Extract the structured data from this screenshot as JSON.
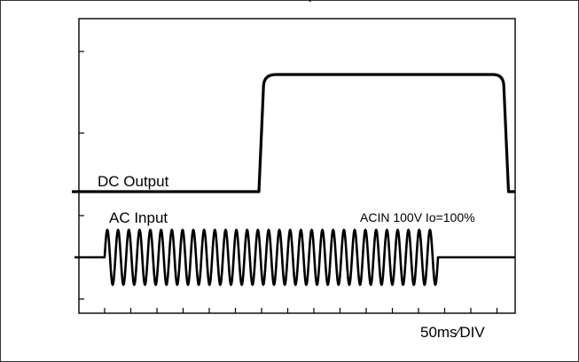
{
  "title_partial": "(",
  "labels": {
    "dc_output": "DC Output",
    "ac_input": "AC Input",
    "condition": "ACIN 100V  Io=100%",
    "time_div": "50ms∕DIV"
  },
  "colors": {
    "trace": "#000000",
    "axis": "#000000",
    "background": "#ffffff"
  },
  "chart_data": {
    "type": "line",
    "title": "",
    "xlabel": "",
    "ylabel": "",
    "x_divisions": 16,
    "time_per_division": "50ms",
    "grid": false,
    "series": [
      {
        "name": "DC Output",
        "points": [
          [
            0,
            0
          ],
          [
            5.6,
            0
          ],
          [
            5.8,
            1.0
          ],
          [
            13.0,
            1.0
          ],
          [
            13.2,
            0
          ],
          [
            16,
            0
          ]
        ]
      },
      {
        "name": "AC Input",
        "waveform": "sine",
        "baseline_before_start": [
          0,
          1.0
        ],
        "on_start_div": 1.0,
        "on_end_div": 13.3,
        "cycles": 31,
        "amplitude": 1,
        "baseline_after_end": [
          13.3,
          16
        ]
      }
    ],
    "annotations": [
      "ACIN 100V  Io=100%",
      "50ms∕DIV"
    ]
  }
}
